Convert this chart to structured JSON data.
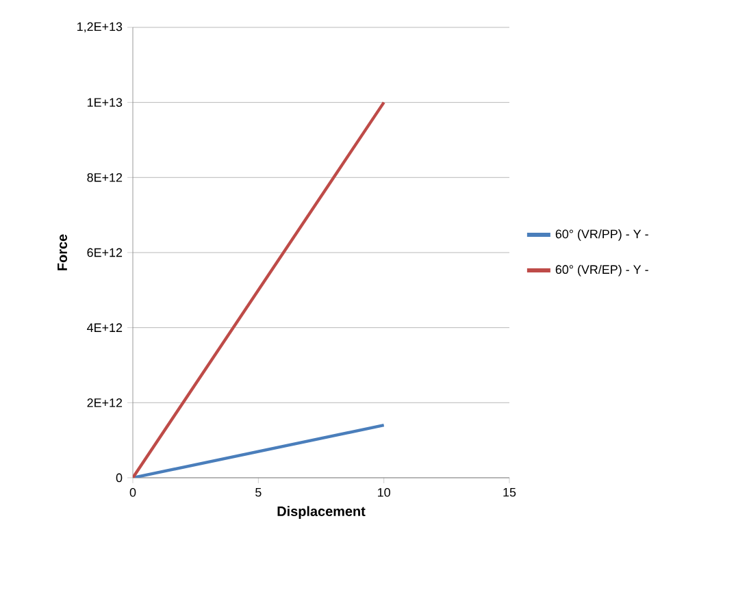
{
  "chart_data": {
    "type": "line",
    "xlabel": "Displacement",
    "ylabel": "Force",
    "x": [
      0,
      10
    ],
    "xlim": [
      0,
      15
    ],
    "xticks": [
      0,
      5,
      10,
      15
    ],
    "ylim": [
      0,
      12000000000000.0
    ],
    "yticks": [
      {
        "value": 0,
        "label": "0"
      },
      {
        "value": 2000000000000.0,
        "label": "2E+12"
      },
      {
        "value": 4000000000000.0,
        "label": "4E+12"
      },
      {
        "value": 6000000000000.0,
        "label": "6E+12"
      },
      {
        "value": 8000000000000.0,
        "label": "8E+12"
      },
      {
        "value": 10000000000000.0,
        "label": "1E+13"
      },
      {
        "value": 12000000000000.0,
        "label": "1,2E+13"
      }
    ],
    "grid": "y",
    "legend": "right",
    "marker": "none",
    "line_style": "solid",
    "series": [
      {
        "name": "60° (VR/PP) - Y -",
        "color": "#4a7ebb",
        "values": [
          0,
          1400000000000.0
        ]
      },
      {
        "name": "60° (VR/EP) - Y -",
        "color": "#be4b48",
        "values": [
          0,
          10000000000000.0
        ]
      }
    ]
  }
}
